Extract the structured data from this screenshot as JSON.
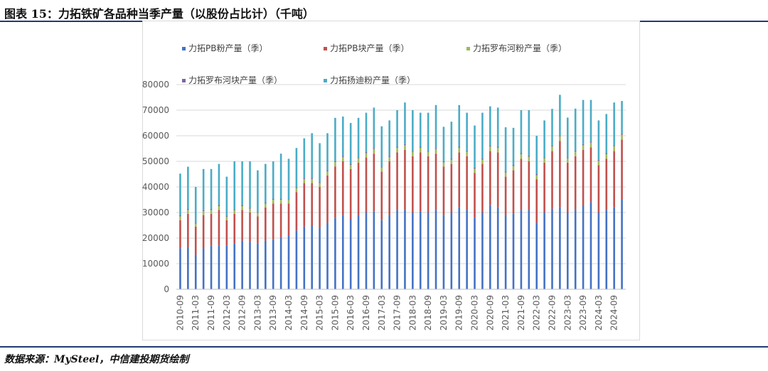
{
  "figure": {
    "title": "图表 15：力拓铁矿各品种当季产量（以股份占比计）（千吨）",
    "source": "数据来源：MySteel，中信建投期货绘制"
  },
  "chart_data": {
    "type": "bar",
    "stacked": true,
    "title": "",
    "xlabel": "",
    "ylabel": "",
    "ylim": [
      0,
      80000
    ],
    "yticks": [
      0,
      10000,
      20000,
      30000,
      40000,
      50000,
      60000,
      70000,
      80000
    ],
    "grid": true,
    "legend_position": "top",
    "categories": [
      "2010-09",
      "2010-12",
      "2011-03",
      "2011-06",
      "2011-09",
      "2011-12",
      "2012-03",
      "2012-06",
      "2012-09",
      "2012-12",
      "2013-03",
      "2013-06",
      "2013-09",
      "2013-12",
      "2014-03",
      "2014-06",
      "2014-09",
      "2014-12",
      "2015-03",
      "2015-06",
      "2015-09",
      "2015-12",
      "2016-03",
      "2016-06",
      "2016-09",
      "2016-12",
      "2017-03",
      "2017-06",
      "2017-09",
      "2017-12",
      "2018-03",
      "2018-06",
      "2018-09",
      "2018-12",
      "2019-03",
      "2019-06",
      "2019-09",
      "2019-12",
      "2020-03",
      "2020-06",
      "2020-09",
      "2020-12",
      "2021-03",
      "2021-06",
      "2021-09",
      "2021-12",
      "2022-03",
      "2022-06",
      "2022-09",
      "2022-12",
      "2023-03",
      "2023-06",
      "2023-09",
      "2023-12",
      "2024-03",
      "2024-06",
      "2024-09",
      "2024-12"
    ],
    "tick_labels": [
      "2010-09",
      "2011-03",
      "2011-09",
      "2012-03",
      "2012-09",
      "2013-03",
      "2013-09",
      "2014-03",
      "2014-09",
      "2015-03",
      "2015-09",
      "2016-03",
      "2016-09",
      "2017-03",
      "2017-09",
      "2018-03",
      "2018-09",
      "2019-03",
      "2019-09",
      "2020-03",
      "2020-09",
      "2021-03",
      "2021-09",
      "2022-03",
      "2022-09",
      "2023-03",
      "2023-09",
      "2024-03",
      "2024-09"
    ],
    "series": [
      {
        "name": "力拓PB粉产量（季）",
        "color": "#4472c4",
        "values": [
          16000,
          16500,
          13500,
          16000,
          17000,
          17000,
          17000,
          18000,
          19000,
          18500,
          18000,
          19000,
          19500,
          20000,
          21000,
          23000,
          24500,
          25000,
          24000,
          26000,
          28000,
          29000,
          27500,
          29000,
          30000,
          30500,
          27000,
          29000,
          31000,
          31000,
          30000,
          30500,
          30000,
          31000,
          29000,
          30000,
          32000,
          31000,
          28000,
          30000,
          33000,
          32000,
          29000,
          29500,
          31000,
          31000,
          26000,
          30000,
          31500,
          32000,
          30000,
          31000,
          32500,
          34000,
          30000,
          31000,
          32000,
          35000
        ]
      },
      {
        "name": "力拓PB块产量（季）",
        "color": "#c0504d",
        "values": [
          11000,
          13000,
          11000,
          13000,
          12500,
          14000,
          10000,
          11500,
          12000,
          11500,
          10500,
          13000,
          14000,
          13500,
          12500,
          15000,
          17000,
          16500,
          16000,
          18500,
          20000,
          21000,
          19500,
          20500,
          21500,
          22500,
          19000,
          21000,
          22500,
          23500,
          22000,
          23000,
          22000,
          22000,
          19000,
          19000,
          21500,
          21000,
          17500,
          19000,
          21000,
          21500,
          15000,
          17000,
          20000,
          19000,
          17000,
          19500,
          22500,
          26000,
          19500,
          21000,
          22000,
          21500,
          18500,
          20000,
          22000,
          23500
        ]
      },
      {
        "name": "力拓罗布河粉产量（季）",
        "color": "#9bbb59",
        "values": [
          1500,
          1500,
          1200,
          1500,
          1500,
          1500,
          1300,
          1400,
          1500,
          1500,
          1400,
          1500,
          1500,
          1500,
          1400,
          1500,
          1600,
          1600,
          1500,
          1600,
          1700,
          1700,
          1600,
          1700,
          1700,
          1800,
          1600,
          1700,
          1800,
          1800,
          1700,
          1800,
          1700,
          1800,
          1600,
          1700,
          1800,
          1800,
          1600,
          1700,
          1800,
          1800,
          1600,
          1700,
          1800,
          1800,
          1600,
          1700,
          1800,
          1800,
          1700,
          1800,
          1800,
          1800,
          1700,
          1800,
          1900,
          1900
        ]
      },
      {
        "name": "力拓罗布河块产量（季）",
        "color": "#8064a2",
        "values": [
          400,
          400,
          300,
          400,
          400,
          400,
          300,
          400,
          400,
          400,
          300,
          400,
          400,
          400,
          300,
          400,
          400,
          400,
          400,
          400,
          400,
          400,
          400,
          400,
          400,
          400,
          400,
          400,
          400,
          400,
          400,
          400,
          400,
          400,
          400,
          400,
          400,
          400,
          400,
          400,
          400,
          400,
          400,
          400,
          400,
          400,
          400,
          400,
          400,
          400,
          400,
          400,
          400,
          400,
          400,
          400,
          400,
          400
        ]
      },
      {
        "name": "力拓扬迪粉产量（季）",
        "color": "#4bacc6",
        "values": [
          16300,
          16500,
          14000,
          16100,
          15600,
          16100,
          15400,
          18700,
          17100,
          18100,
          16300,
          15100,
          14600,
          17600,
          15800,
          15300,
          15500,
          17500,
          15200,
          14500,
          16900,
          15400,
          16000,
          15400,
          15400,
          15800,
          15700,
          13900,
          14300,
          16300,
          15900,
          13300,
          14900,
          16800,
          13500,
          14400,
          16300,
          14800,
          16500,
          17900,
          15300,
          15300,
          17300,
          14500,
          16800,
          17800,
          15000,
          14400,
          14300,
          15800,
          15500,
          16400,
          17300,
          16300,
          15400,
          15300,
          16700,
          12800
        ]
      }
    ]
  }
}
